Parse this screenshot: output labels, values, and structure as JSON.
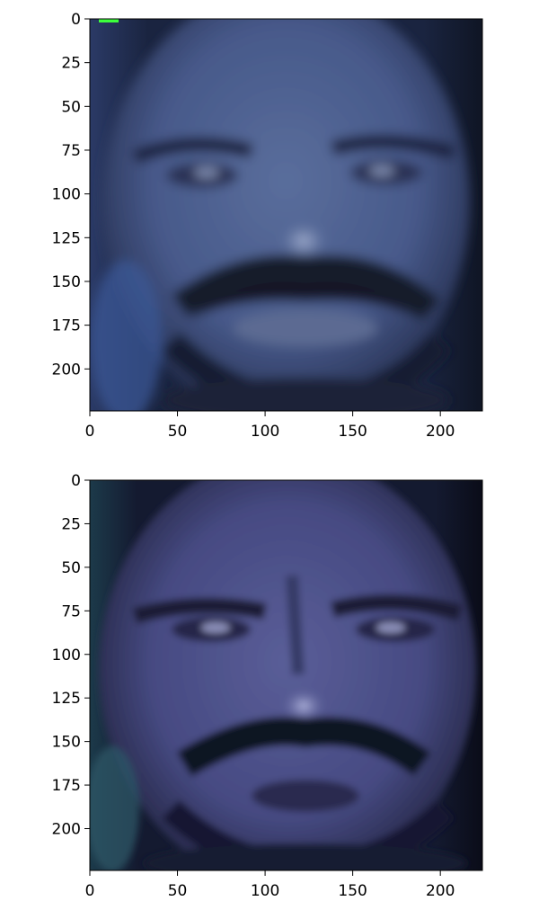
{
  "chart_data": [
    {
      "type": "heatmap",
      "title": "",
      "xlabel": "",
      "ylabel": "",
      "xlim": [
        0,
        224
      ],
      "ylim": [
        224,
        0
      ],
      "x_ticks": [
        "0",
        "50",
        "100",
        "150",
        "200"
      ],
      "y_ticks": [
        "0",
        "25",
        "50",
        "75",
        "100",
        "125",
        "150",
        "175",
        "200"
      ],
      "x_tick_values": [
        0,
        50,
        100,
        150,
        200
      ],
      "y_tick_values": [
        0,
        25,
        50,
        75,
        100,
        125,
        150,
        175,
        200
      ],
      "grid": false,
      "image": "face image (blurred, blue-tinted)",
      "colors": {
        "skin": "#4a5e8c",
        "shadow": "#121a2e",
        "highlight": "#9aa8c8",
        "marker": "#3cff3c"
      }
    },
    {
      "type": "heatmap",
      "title": "",
      "xlabel": "",
      "ylabel": "",
      "xlim": [
        0,
        224
      ],
      "ylim": [
        224,
        0
      ],
      "x_ticks": [
        "0",
        "50",
        "100",
        "150",
        "200"
      ],
      "y_ticks": [
        "0",
        "25",
        "50",
        "75",
        "100",
        "125",
        "150",
        "175",
        "200"
      ],
      "x_tick_values": [
        0,
        50,
        100,
        150,
        200
      ],
      "y_tick_values": [
        0,
        25,
        50,
        75,
        100,
        125,
        150,
        175,
        200
      ],
      "grid": false,
      "image": "face image (pixelated, purple-blue tint)",
      "colors": {
        "skin": "#4c4f88",
        "shadow": "#0e1020",
        "highlight": "#a0a4d0"
      }
    }
  ]
}
